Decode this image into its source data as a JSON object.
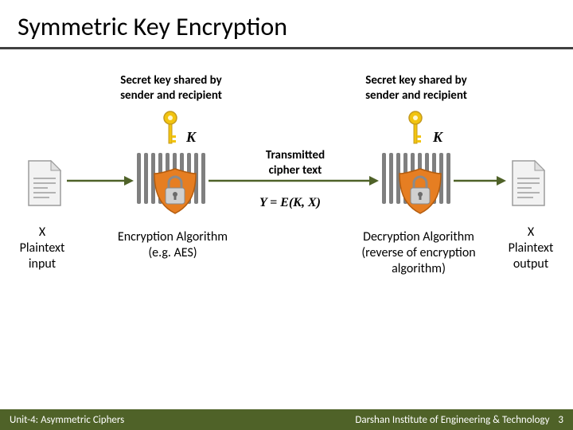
{
  "title": "Symmetric Key Encryption",
  "diagram": {
    "key_label_left": "Secret key shared by\nsender and recipient",
    "key_label_right": "Secret key shared by\nsender and recipient",
    "k_left": "K",
    "k_right": "K",
    "transmitted_label": "Transmitted\ncipher text",
    "equation": "Y = E(K, X)",
    "encryption_label": "Encryption Algorithm\n(e.g. AES)",
    "decryption_label": "Decryption Algorithm\n(reverse of encryption\nalgorithm)",
    "plaintext_input": "X\nPlaintext\ninput",
    "plaintext_output": "X\nPlaintext\noutput"
  },
  "colors": {
    "key_yellow": "#f2c40f",
    "key_handle": "#c49a1e",
    "lock_orange": "#e67e22",
    "lock_body": "#bfbfbf",
    "bars_grey": "#7f7f7f",
    "doc_fill": "#f2f2f2",
    "doc_stroke": "#9c9c9c",
    "arrow": "#4f6228",
    "footer_bg": "#4f6228"
  },
  "footer": {
    "left": "Unit-4: Asymmetric Ciphers",
    "right": "Darshan Institute of Engineering & Technology",
    "slide_number": "3"
  }
}
